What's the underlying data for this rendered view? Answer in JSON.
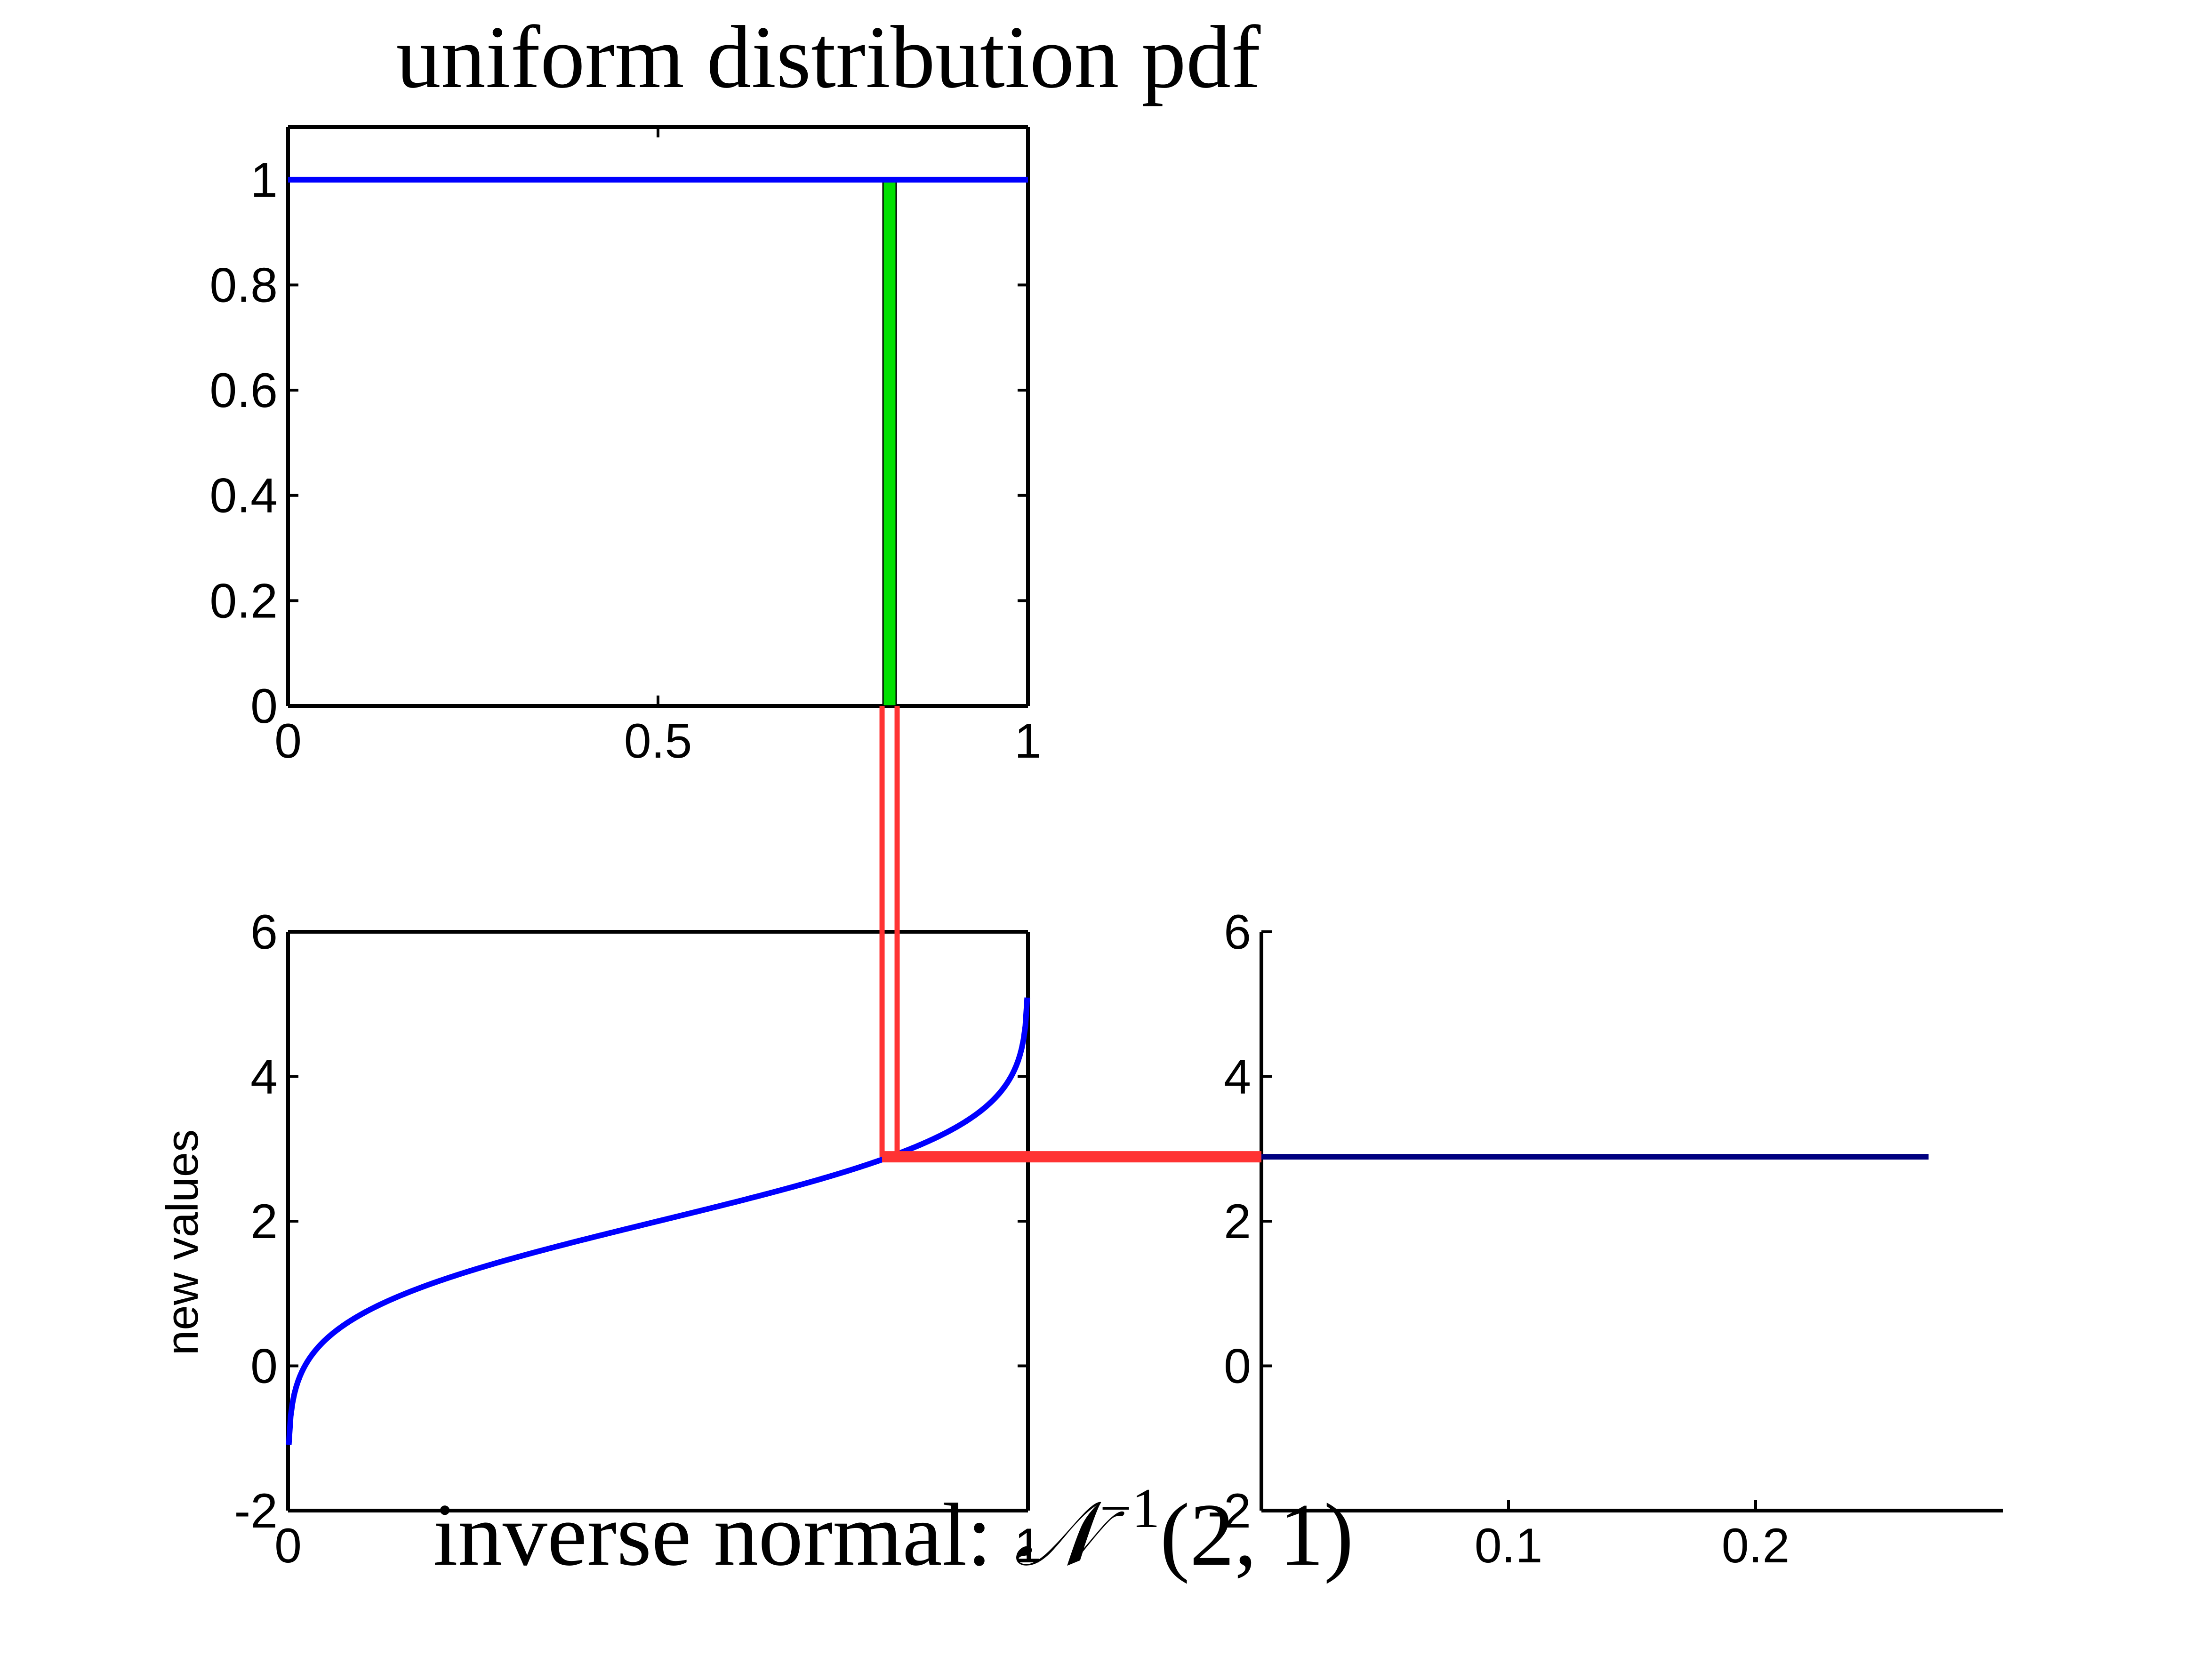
{
  "figure": {
    "top_title": "uniform distribution pdf",
    "bottom_title": {
      "prefix": "inverse normal: ",
      "symbol": "𝒩",
      "superscript": "−1",
      "args": "(2, 1)"
    }
  },
  "colors": {
    "curve": "#0000ff",
    "highlight": "#00e000",
    "connector": "#ff3333",
    "result_line": "#000080",
    "axes": "#000000"
  },
  "chart_data": [
    {
      "id": "pdf",
      "type": "line",
      "title": "uniform distribution pdf",
      "xlabel": "",
      "ylabel": "",
      "xlim": [
        0,
        1
      ],
      "ylim": [
        0,
        1.1
      ],
      "xticks": [
        0,
        0.5,
        1
      ],
      "xtick_labels": [
        "0",
        "0.5",
        "1"
      ],
      "yticks": [
        0,
        0.2,
        0.4,
        0.6,
        0.8,
        1
      ],
      "ytick_labels": [
        "0",
        "0.2",
        "0.4",
        "0.6",
        "0.8",
        "1"
      ],
      "series": [
        {
          "x": [
            0,
            1
          ],
          "y": [
            1,
            1
          ],
          "color": "#0000ff"
        }
      ],
      "highlight_bar": {
        "x": 0.813,
        "y_from": 0,
        "y_to": 1,
        "color": "#00e000"
      },
      "box": true
    },
    {
      "id": "inverse",
      "type": "line",
      "title": "",
      "xlabel": "",
      "ylabel": "new values",
      "xlim": [
        0,
        1
      ],
      "ylim": [
        -2,
        6
      ],
      "xticks": [
        0,
        1
      ],
      "xtick_labels": [
        "0",
        "1"
      ],
      "yticks": [
        -2,
        0,
        2,
        4,
        6
      ],
      "ytick_labels": [
        "-2",
        "0",
        "2",
        "4",
        "6"
      ],
      "curve": {
        "function": "normal_inverse_cdf",
        "mean": 2,
        "std": 1,
        "p_min": 0.001,
        "p_max": 0.999,
        "color": "#0000ff"
      },
      "box": true
    },
    {
      "id": "result",
      "type": "line",
      "title": "",
      "xlabel": "",
      "ylabel": "",
      "xlim": [
        0,
        0.3
      ],
      "ylim": [
        -2,
        6
      ],
      "xticks": [
        0.1,
        0.2
      ],
      "xtick_labels": [
        "0.1",
        "0.2"
      ],
      "yticks": [
        -2,
        0,
        2,
        4,
        6
      ],
      "ytick_labels": [
        "-2",
        "0",
        "2",
        "4",
        "6"
      ],
      "series": [
        {
          "x": [
            0,
            0.27
          ],
          "y": [
            2.89,
            2.89
          ],
          "color": "#000080"
        }
      ],
      "box": false
    }
  ],
  "connector": {
    "p": 0.813,
    "value": 2.89,
    "color": "#ff3333"
  }
}
